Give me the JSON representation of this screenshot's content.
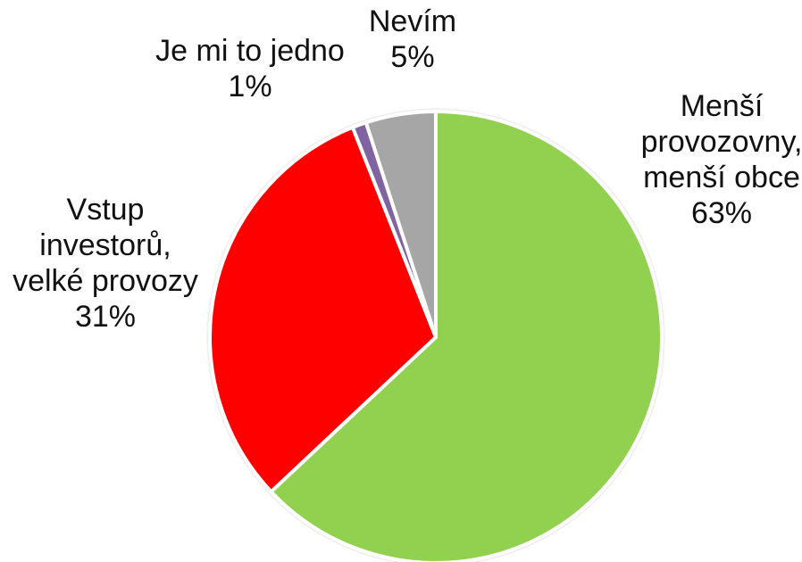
{
  "chart_data": {
    "type": "pie",
    "title": "",
    "start_angle_deg": 0,
    "direction": "clockwise",
    "slices": [
      {
        "label_lines": [
          "Menší",
          "provozovny,",
          "menší obce"
        ],
        "value_label": "63%",
        "value": 63,
        "color": "#92D050"
      },
      {
        "label_lines": [
          "Vstup",
          "investorů,",
          "velké provozy"
        ],
        "value_label": "31%",
        "value": 31,
        "color": "#FF0000"
      },
      {
        "label_lines": [
          "Je mi to jedno"
        ],
        "value_label": "1%",
        "value": 1,
        "color": "#8064A2"
      },
      {
        "label_lines": [
          "Nevím"
        ],
        "value_label": "5%",
        "value": 5,
        "color": "#A6A6A6"
      }
    ],
    "legend": "none",
    "border_color": "#ffffff",
    "outer_ring_color": "#eeeeee"
  }
}
